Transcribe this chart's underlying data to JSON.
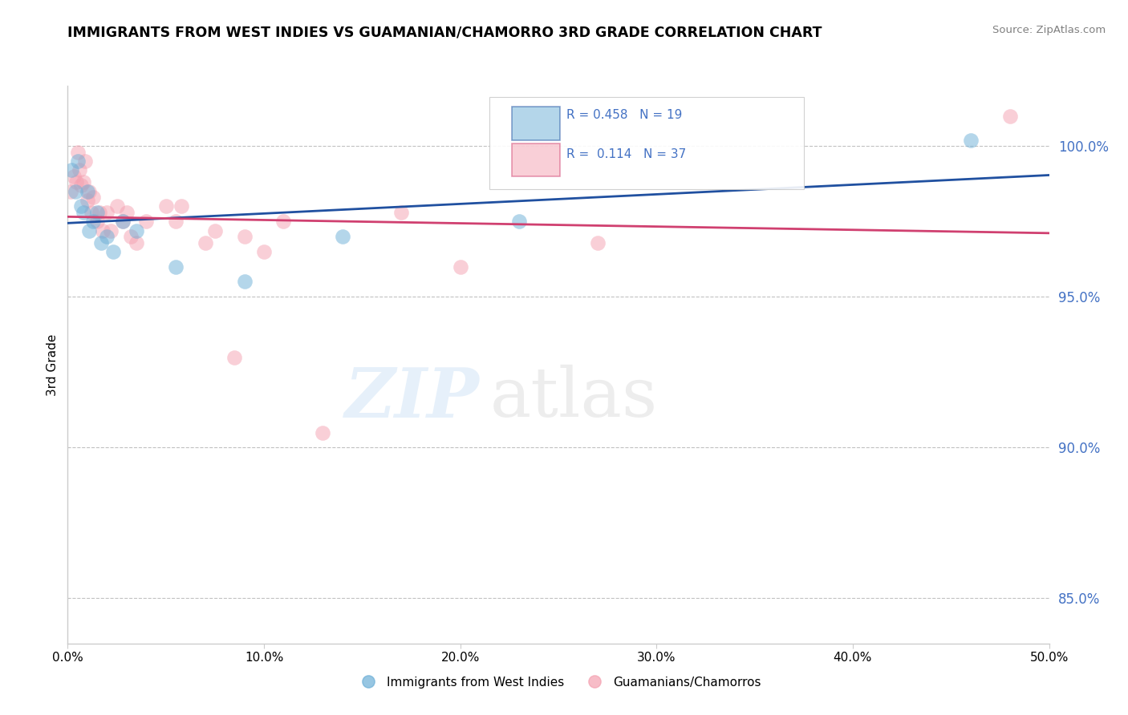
{
  "title": "IMMIGRANTS FROM WEST INDIES VS GUAMANIAN/CHAMORRO 3RD GRADE CORRELATION CHART",
  "source": "Source: ZipAtlas.com",
  "ylabel": "3rd Grade",
  "y_ticks": [
    85.0,
    90.0,
    95.0,
    100.0
  ],
  "y_tick_labels": [
    "85.0%",
    "90.0%",
    "95.0%",
    "100.0%"
  ],
  "x_range": [
    0.0,
    50.0
  ],
  "y_range": [
    83.5,
    102.0
  ],
  "R_blue": 0.458,
  "N_blue": 19,
  "R_pink": 0.114,
  "N_pink": 37,
  "blue_color": "#6baed6",
  "pink_color": "#f4a0b0",
  "blue_line_color": "#2050a0",
  "pink_line_color": "#d04070",
  "legend_entries": [
    "Immigrants from West Indies",
    "Guamanians/Chamorros"
  ],
  "blue_x": [
    0.2,
    0.4,
    0.5,
    0.7,
    0.8,
    1.0,
    1.1,
    1.3,
    1.5,
    1.7,
    2.0,
    2.3,
    2.8,
    3.5,
    5.5,
    9.0,
    14.0,
    23.0,
    46.0
  ],
  "blue_y": [
    99.2,
    98.5,
    99.5,
    98.0,
    97.8,
    98.5,
    97.2,
    97.5,
    97.8,
    96.8,
    97.0,
    96.5,
    97.5,
    97.2,
    96.0,
    95.5,
    97.0,
    97.5,
    100.2
  ],
  "pink_x": [
    0.15,
    0.3,
    0.45,
    0.5,
    0.6,
    0.7,
    0.8,
    0.9,
    1.0,
    1.1,
    1.2,
    1.3,
    1.5,
    1.6,
    1.8,
    2.0,
    2.2,
    2.5,
    2.8,
    3.0,
    3.2,
    3.5,
    4.0,
    5.0,
    5.5,
    5.8,
    7.0,
    7.5,
    8.5,
    9.0,
    10.0,
    11.0,
    13.0,
    17.0,
    20.0,
    27.0,
    48.0
  ],
  "pink_y": [
    98.5,
    99.0,
    98.8,
    99.8,
    99.2,
    98.7,
    98.8,
    99.5,
    98.2,
    98.5,
    97.8,
    98.3,
    97.5,
    97.8,
    97.2,
    97.8,
    97.2,
    98.0,
    97.5,
    97.8,
    97.0,
    96.8,
    97.5,
    98.0,
    97.5,
    98.0,
    96.8,
    97.2,
    93.0,
    97.0,
    96.5,
    97.5,
    90.5,
    97.8,
    96.0,
    96.8,
    101.0
  ]
}
